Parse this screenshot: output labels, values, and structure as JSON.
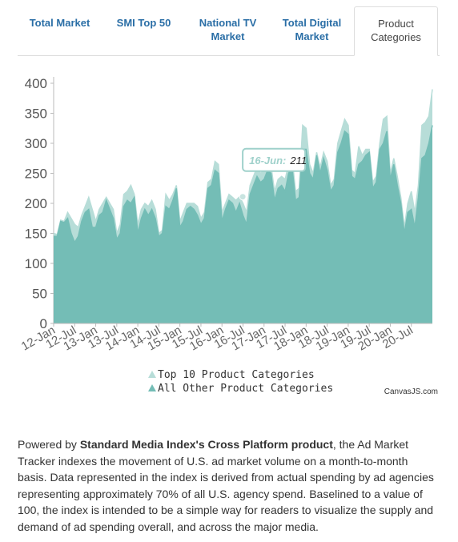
{
  "tabs": [
    "Total Market",
    "SMI Top 50",
    "National TV Market",
    "Total Digital Market",
    "Product Categories"
  ],
  "chart_data": {
    "type": "area",
    "categories": [
      "12-Jan",
      null,
      null,
      null,
      null,
      null,
      "12-Jul",
      null,
      null,
      null,
      null,
      null,
      "13-Jan",
      null,
      null,
      null,
      null,
      null,
      "13-Jul",
      null,
      null,
      null,
      null,
      null,
      "14-Jan",
      null,
      null,
      null,
      null,
      null,
      "14-Jul",
      null,
      null,
      null,
      null,
      null,
      "15-Jan",
      null,
      null,
      null,
      null,
      null,
      "15-Jul",
      null,
      null,
      null,
      null,
      null,
      "16-Jan",
      null,
      null,
      null,
      null,
      null,
      "16-Jul",
      null,
      null,
      null,
      null,
      null,
      "17-Jan",
      null,
      null,
      null,
      null,
      null,
      "17-Jul",
      null,
      null,
      null,
      null,
      null,
      "18-Jan",
      null,
      null,
      null,
      null,
      null,
      "18-Jul",
      null,
      null,
      null,
      null,
      null,
      "19-Jan",
      null,
      null,
      null,
      null,
      null,
      "19-Jul",
      null,
      null,
      null,
      null,
      null,
      "20-Jan",
      null,
      null,
      null,
      null,
      null,
      "20-Jul",
      null,
      null,
      null,
      null,
      null,
      null
    ],
    "series": [
      {
        "name": "Top 10 Product Categories",
        "color": "#b7ddd8",
        "values": [
          150,
          148,
          172,
          170,
          185,
          175,
          165,
          160,
          180,
          195,
          210,
          190,
          170,
          190,
          200,
          210,
          200,
          190,
          150,
          165,
          215,
          220,
          230,
          215,
          165,
          190,
          200,
          195,
          205,
          190,
          150,
          155,
          215,
          205,
          215,
          230,
          170,
          185,
          200,
          200,
          200,
          195,
          175,
          185,
          235,
          240,
          270,
          265,
          185,
          200,
          215,
          210,
          205,
          211,
          200,
          185,
          230,
          245,
          260,
          250,
          255,
          265,
          262,
          220,
          240,
          245,
          240,
          265,
          275,
          220,
          225,
          330,
          325,
          265,
          250,
          285,
          260,
          285,
          270,
          230,
          240,
          300,
          320,
          340,
          330,
          255,
          250,
          295,
          280,
          290,
          290,
          235,
          245,
          300,
          340,
          345,
          250,
          275,
          245,
          210,
          160,
          200,
          220,
          185,
          230,
          330,
          335,
          345,
          390
        ]
      },
      {
        "name": "All Other Product Categories",
        "color": "#74bdb6",
        "values": [
          145,
          145,
          170,
          168,
          175,
          150,
          135,
          145,
          170,
          185,
          190,
          160,
          160,
          180,
          185,
          205,
          190,
          175,
          140,
          150,
          195,
          205,
          200,
          210,
          150,
          175,
          190,
          180,
          190,
          175,
          145,
          150,
          195,
          190,
          205,
          225,
          160,
          170,
          190,
          195,
          190,
          180,
          165,
          175,
          225,
          230,
          255,
          250,
          170,
          190,
          205,
          200,
          185,
          200,
          180,
          165,
          215,
          230,
          245,
          235,
          240,
          255,
          250,
          205,
          225,
          230,
          220,
          250,
          260,
          205,
          210,
          290,
          290,
          250,
          240,
          280,
          250,
          275,
          255,
          220,
          230,
          285,
          300,
          320,
          315,
          245,
          240,
          265,
          270,
          280,
          285,
          225,
          235,
          290,
          300,
          320,
          240,
          265,
          230,
          200,
          150,
          185,
          190,
          160,
          210,
          275,
          280,
          300,
          330
        ]
      }
    ],
    "ylim": [
      0,
      400
    ],
    "yticks": [
      0,
      50,
      100,
      150,
      200,
      250,
      300,
      350,
      400
    ],
    "grid": false,
    "tooltip": {
      "label": "16-Jun:",
      "value": 211
    },
    "credit": "CanvasJS.com"
  },
  "description": {
    "prefix": "Powered by",
    "bold": "Standard Media Index's Cross Platform product",
    "text": ", the Ad Market Tracker indexes the movement of U.S. ad market volume on a month-to-month basis. Data represented in the index is derived from actual spending by ad agencies representing approximately 70% of all U.S. agency spend. Baselined to a value of 100, the index is intended to be a simple way for readers to visualize the supply and demand of ad spending overall, and across the major media."
  }
}
